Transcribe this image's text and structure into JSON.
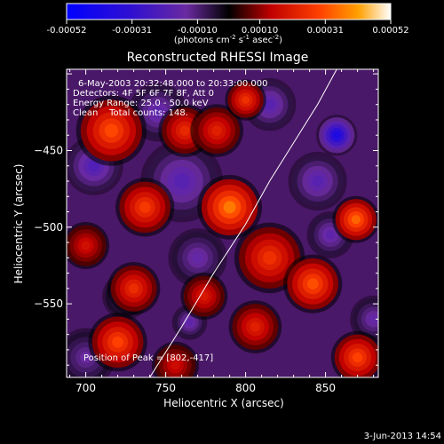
{
  "chart_data": {
    "type": "heatmap",
    "title": "Reconstructed RHESSI Image",
    "xlabel": "Heliocentric X (arcsec)",
    "ylabel": "Heliocentric Y (arcsec)",
    "xlim": [
      688,
      883
    ],
    "ylim": [
      -598,
      -397
    ],
    "x_ticks": [
      700,
      750,
      800,
      850
    ],
    "y_ticks": [
      -450,
      -500,
      -550
    ],
    "annotations": [
      "6-May-2003 20:32:48.000 to 20:33:00.000",
      "Detectors: 4F 5F 6F 7F 8F, Att 0",
      "Energy Range: 25.0 - 50.0 keV",
      "Clean    Total counts: 148."
    ],
    "peak_label": "Position of Peak = [802,-417]",
    "peak": [
      802,
      -417
    ],
    "limb_curve": [
      [
        740,
        -598
      ],
      [
        760,
        -565
      ],
      [
        780,
        -530
      ],
      [
        800,
        -498
      ],
      [
        815,
        -470
      ],
      [
        830,
        -445
      ],
      [
        845,
        -420
      ],
      [
        857,
        -397
      ]
    ],
    "colorbar": {
      "ticks": [
        "-0.00052",
        "-0.00031",
        "-0.00010",
        "0.00010",
        "0.00031",
        "0.00052"
      ],
      "units_prefix": "(photons cm",
      "units_exp1": "-2",
      "units_mid": " s",
      "units_exp2": "-1",
      "units_mid2": " asec",
      "units_exp3": "-2",
      "units_suffix": ")",
      "range": [
        -0.00052,
        0.00052
      ]
    },
    "hot_blobs": [
      [
        716,
        -437,
        0.00031,
        12
      ],
      [
        737,
        -487,
        0.00028,
        10
      ],
      [
        762,
        -437,
        0.00024,
        9
      ],
      [
        790,
        -487,
        0.00038,
        11
      ],
      [
        782,
        -437,
        0.00022,
        9
      ],
      [
        730,
        -540,
        0.00025,
        9
      ],
      [
        815,
        -520,
        0.00026,
        12
      ],
      [
        774,
        -545,
        0.0002,
        8
      ],
      [
        720,
        -575,
        0.0003,
        10
      ],
      [
        842,
        -537,
        0.00032,
        10
      ],
      [
        869,
        -495,
        0.00035,
        8
      ],
      [
        870,
        -585,
        0.0003,
        9
      ],
      [
        700,
        -512,
        0.00018,
        8
      ],
      [
        806,
        -565,
        0.00022,
        9
      ],
      [
        756,
        -590,
        0.00017,
        8
      ],
      [
        800,
        -417,
        0.00026,
        7
      ]
    ],
    "cold_blobs": [
      [
        857,
        -440,
        -0.0004,
        7
      ],
      [
        853,
        -505,
        -0.00018,
        8
      ],
      [
        845,
        -470,
        -0.0002,
        10
      ],
      [
        760,
        -470,
        -0.0002,
        14
      ],
      [
        705,
        -460,
        -0.00022,
        10
      ],
      [
        770,
        -520,
        -0.00016,
        10
      ],
      [
        765,
        -562,
        -0.00018,
        6
      ],
      [
        725,
        -545,
        -0.00012,
        8
      ],
      [
        880,
        -560,
        -0.00016,
        8
      ],
      [
        815,
        -420,
        -0.0002,
        9
      ],
      [
        745,
        -425,
        -0.00018,
        10
      ],
      [
        700,
        -585,
        -0.00014,
        10
      ]
    ]
  },
  "footer": {
    "date": "3-Jun-2013 14:54"
  }
}
